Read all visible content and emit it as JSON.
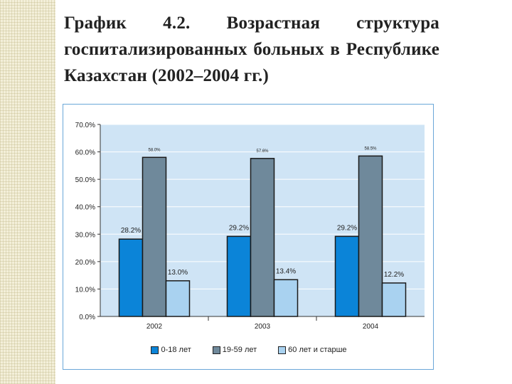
{
  "page": {
    "title": "График 4.2. Возрастная структура госпитализированных больных в Республике Казахстан (2002–2004 гг.)"
  },
  "chart_data": {
    "type": "bar",
    "categories": [
      "2002",
      "2003",
      "2004"
    ],
    "series": [
      {
        "name": "0-18 лет",
        "values": [
          28.2,
          29.2,
          29.2
        ],
        "labels": [
          "28.2%",
          "29.2%",
          "29.2%"
        ],
        "color": "#0b84d8"
      },
      {
        "name": "19-59 лет",
        "values": [
          58.0,
          57.6,
          58.5
        ],
        "labels": [
          "58.0%",
          "57.6%",
          "58.5%"
        ],
        "color": "#6f899b"
      },
      {
        "name": "60 лет и старше",
        "values": [
          13.0,
          13.4,
          12.2
        ],
        "labels": [
          "13.0%",
          "13.4%",
          "12.2%"
        ],
        "color": "#a9d2f0"
      }
    ],
    "yticks": [
      "0.0%",
      "10.0%",
      "20.0%",
      "30.0%",
      "40.0%",
      "50.0%",
      "60.0%",
      "70.0%"
    ],
    "ylim": [
      0,
      70
    ],
    "grid": true,
    "legend_position": "bottom",
    "plot_background": "#cfe4f5"
  }
}
